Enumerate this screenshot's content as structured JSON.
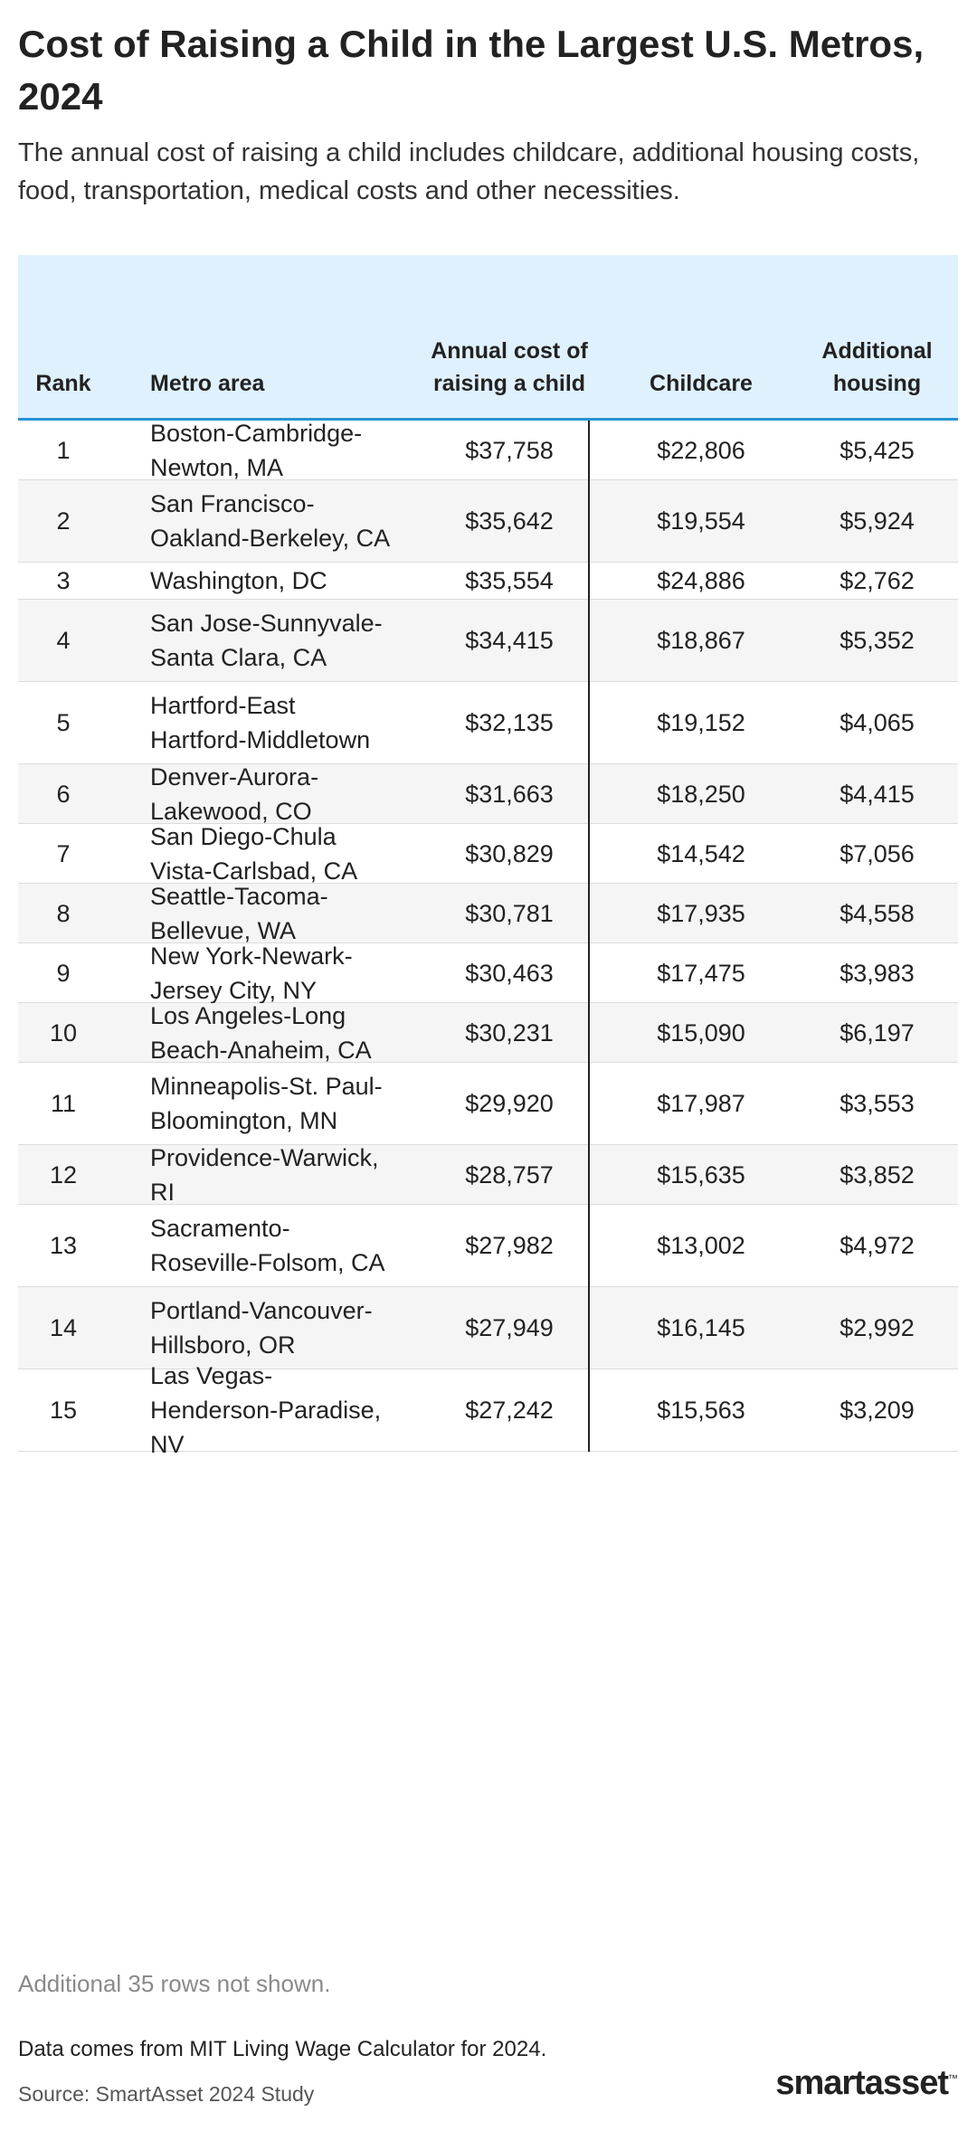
{
  "title": "Cost of Raising a Child in the Largest U.S. Metros, 2024",
  "subtitle": "The annual cost of raising a child includes childcare, additional housing costs, food, transportation, medical costs and other necessities.",
  "colors": {
    "header_bg": "#dff1fd",
    "header_rule": "#2a93d5",
    "row_alt": "#f5f5f5",
    "divider": "#222222"
  },
  "chart_data": {
    "type": "table",
    "columns": [
      "Rank",
      "Metro area",
      "Annual cost of raising a child",
      "Childcare",
      "Additional housing"
    ],
    "rows": [
      [
        "1",
        "Boston-Cambridge-Newton, MA",
        "$37,758",
        "$22,806",
        "$5,425"
      ],
      [
        "2",
        "San Francisco-Oakland-Berkeley, CA",
        "$35,642",
        "$19,554",
        "$5,924"
      ],
      [
        "3",
        "Washington, DC",
        "$35,554",
        "$24,886",
        "$2,762"
      ],
      [
        "4",
        "San Jose-Sunnyvale-Santa Clara, CA",
        "$34,415",
        "$18,867",
        "$5,352"
      ],
      [
        "5",
        "Hartford-East Hartford-Middletown",
        "$32,135",
        "$19,152",
        "$4,065"
      ],
      [
        "6",
        "Denver-Aurora-Lakewood, CO",
        "$31,663",
        "$18,250",
        "$4,415"
      ],
      [
        "7",
        "San Diego-Chula Vista-Carlsbad, CA",
        "$30,829",
        "$14,542",
        "$7,056"
      ],
      [
        "8",
        "Seattle-Tacoma-Bellevue, WA",
        "$30,781",
        "$17,935",
        "$4,558"
      ],
      [
        "9",
        "New York-Newark-Jersey City, NY",
        "$30,463",
        "$17,475",
        "$3,983"
      ],
      [
        "10",
        "Los Angeles-Long Beach-Anaheim, CA",
        "$30,231",
        "$15,090",
        "$6,197"
      ],
      [
        "11",
        "Minneapolis-St. Paul-Bloomington, MN",
        "$29,920",
        "$17,987",
        "$3,553"
      ],
      [
        "12",
        "Providence-Warwick, RI",
        "$28,757",
        "$15,635",
        "$3,852"
      ],
      [
        "13",
        "Sacramento-Roseville-Folsom, CA",
        "$27,982",
        "$13,002",
        "$4,972"
      ],
      [
        "14",
        "Portland-Vancouver-Hillsboro, OR",
        "$27,949",
        "$16,145",
        "$2,992"
      ],
      [
        "15",
        "Las Vegas-Henderson-Paradise, NV",
        "$27,242",
        "$15,563",
        "$3,209"
      ]
    ]
  },
  "notes": {
    "rows_hidden": "Additional 35 rows not shown.",
    "data_source": "Data comes from MIT Living Wage Calculator for 2024.",
    "source": "Source: SmartAsset 2024 Study"
  },
  "logo": {
    "text": "smartasset",
    "tm": "™"
  }
}
